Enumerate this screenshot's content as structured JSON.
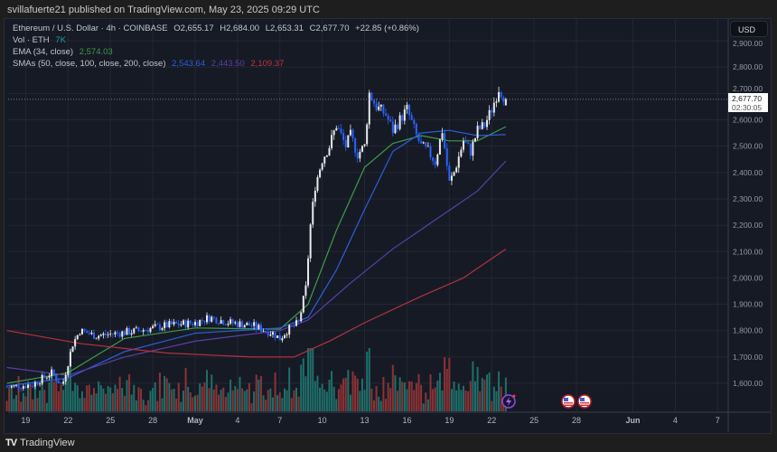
{
  "publisher_line": "svillafuerte21 published on TradingView.com, May 23, 2025 09:29 UTC",
  "legend": {
    "symbol": "Ethereum / U.S. Dollar · 4h · COINBASE",
    "open": "O2,655.17",
    "high": "H2,684.00",
    "low": "L2,653.31",
    "close": "C2,677.70",
    "change": "+22.85 (+0.86%)",
    "vol_label": "Vol · ETH",
    "vol_value": "7K",
    "ema_label": "EMA (34, close)",
    "ema_value": "2,574.03",
    "sma_label": "SMAs (50, close, 100, close, 200, close)",
    "sma50_value": "2,543.64",
    "sma100_value": "2,443.50",
    "sma200_value": "2,109.37"
  },
  "currency_button": "USD",
  "last_price": {
    "value": "2,677.70",
    "countdown": "02:30:05"
  },
  "branding": "TradingView",
  "colors": {
    "up_candle": "#e8eaed",
    "down_candle": "#2962ff",
    "vol_up": "#1f6f69",
    "vol_down": "#8c3336",
    "ema34": "#3f9a4a",
    "sma50": "#2b5fd9",
    "sma100": "#5b3fa6",
    "sma200": "#b5323d",
    "background": "#161a25"
  },
  "chart_data": {
    "type": "candlestick",
    "timeframe": "4h",
    "ylim": [
      1550,
      2950
    ],
    "y_ticks": [
      "2,900.00",
      "2,800.00",
      "2,700.00",
      "2,600.00",
      "2,500.00",
      "2,400.00",
      "2,300.00",
      "2,200.00",
      "2,100.00",
      "2,000.00",
      "1,900.00",
      "1,800.00",
      "1,700.00",
      "1,600.00"
    ],
    "x_ticks": [
      {
        "label": "19",
        "date": "2025-04-19"
      },
      {
        "label": "22",
        "date": "2025-04-22"
      },
      {
        "label": "25",
        "date": "2025-04-25"
      },
      {
        "label": "28",
        "date": "2025-04-28"
      },
      {
        "label": "May",
        "date": "2025-05-01"
      },
      {
        "label": "4",
        "date": "2025-05-04"
      },
      {
        "label": "7",
        "date": "2025-05-07"
      },
      {
        "label": "10",
        "date": "2025-05-10"
      },
      {
        "label": "13",
        "date": "2025-05-13"
      },
      {
        "label": "16",
        "date": "2025-05-16"
      },
      {
        "label": "19",
        "date": "2025-05-19"
      },
      {
        "label": "22",
        "date": "2025-05-22"
      },
      {
        "label": "25",
        "date": "2025-05-25"
      },
      {
        "label": "28",
        "date": "2025-05-28"
      },
      {
        "label": "Jun",
        "date": "2025-06-01"
      },
      {
        "label": "4",
        "date": "2025-06-04"
      },
      {
        "label": "7",
        "date": "2025-06-07"
      }
    ],
    "price_path": [
      [
        "2025-04-17T16:00",
        1585
      ],
      [
        "2025-04-19T12:00",
        1595
      ],
      [
        "2025-04-20T20:00",
        1640
      ],
      [
        "2025-04-21T14:00",
        1590
      ],
      [
        "2025-04-22T08:00",
        1750
      ],
      [
        "2025-04-22T20:00",
        1800
      ],
      [
        "2025-04-24T00:00",
        1780
      ],
      [
        "2025-04-25T12:00",
        1790
      ],
      [
        "2025-04-27T00:00",
        1800
      ],
      [
        "2025-04-29T00:00",
        1820
      ],
      [
        "2025-05-01T00:00",
        1830
      ],
      [
        "2025-05-02T00:00",
        1850
      ],
      [
        "2025-05-03T12:00",
        1830
      ],
      [
        "2025-05-05T00:00",
        1820
      ],
      [
        "2025-05-06T12:00",
        1790
      ],
      [
        "2025-05-07T00:00",
        1770
      ],
      [
        "2025-05-07T12:00",
        1800
      ],
      [
        "2025-05-08T08:00",
        1830
      ],
      [
        "2025-05-08T20:00",
        1960
      ],
      [
        "2025-05-09T04:00",
        2200
      ],
      [
        "2025-05-09T12:00",
        2350
      ],
      [
        "2025-05-10T00:00",
        2450
      ],
      [
        "2025-05-10T12:00",
        2500
      ],
      [
        "2025-05-11T00:00",
        2580
      ],
      [
        "2025-05-11T16:00",
        2500
      ],
      [
        "2025-05-12T00:00",
        2540
      ],
      [
        "2025-05-12T12:00",
        2470
      ],
      [
        "2025-05-13T00:00",
        2500
      ],
      [
        "2025-05-13T08:00",
        2700
      ],
      [
        "2025-05-13T20:00",
        2650
      ],
      [
        "2025-05-14T12:00",
        2620
      ],
      [
        "2025-05-15T00:00",
        2560
      ],
      [
        "2025-05-15T12:00",
        2600
      ],
      [
        "2025-05-16T00:00",
        2640
      ],
      [
        "2025-05-16T16:00",
        2540
      ],
      [
        "2025-05-17T00:00",
        2500
      ],
      [
        "2025-05-17T12:00",
        2480
      ],
      [
        "2025-05-18T00:00",
        2440
      ],
      [
        "2025-05-18T12:00",
        2560
      ],
      [
        "2025-05-19T00:00",
        2360
      ],
      [
        "2025-05-19T08:00",
        2400
      ],
      [
        "2025-05-20T00:00",
        2520
      ],
      [
        "2025-05-20T12:00",
        2480
      ],
      [
        "2025-05-21T00:00",
        2560
      ],
      [
        "2025-05-21T12:00",
        2580
      ],
      [
        "2025-05-22T00:00",
        2640
      ],
      [
        "2025-05-22T12:00",
        2720
      ],
      [
        "2025-05-23T00:00",
        2677.7
      ]
    ],
    "series": [
      {
        "name": "EMA (34, close)",
        "color_key": "ema34",
        "points": [
          [
            "2025-04-17T16:00",
            1600
          ],
          [
            "2025-04-22T00:00",
            1640
          ],
          [
            "2025-04-26T00:00",
            1770
          ],
          [
            "2025-05-01T00:00",
            1810
          ],
          [
            "2025-05-07T00:00",
            1805
          ],
          [
            "2025-05-09T00:00",
            1900
          ],
          [
            "2025-05-11T00:00",
            2180
          ],
          [
            "2025-05-13T00:00",
            2420
          ],
          [
            "2025-05-15T00:00",
            2510
          ],
          [
            "2025-05-17T00:00",
            2540
          ],
          [
            "2025-05-19T00:00",
            2520
          ],
          [
            "2025-05-21T00:00",
            2520
          ],
          [
            "2025-05-23T00:00",
            2574.03
          ]
        ]
      },
      {
        "name": "SMA 50",
        "color_key": "sma50",
        "points": [
          [
            "2025-04-17T16:00",
            1590
          ],
          [
            "2025-04-22T00:00",
            1620
          ],
          [
            "2025-04-26T00:00",
            1720
          ],
          [
            "2025-05-01T00:00",
            1790
          ],
          [
            "2025-05-07T00:00",
            1810
          ],
          [
            "2025-05-09T00:00",
            1850
          ],
          [
            "2025-05-11T00:00",
            2030
          ],
          [
            "2025-05-13T00:00",
            2260
          ],
          [
            "2025-05-15T00:00",
            2480
          ],
          [
            "2025-05-17T00:00",
            2550
          ],
          [
            "2025-05-19T00:00",
            2560
          ],
          [
            "2025-05-21T00:00",
            2540
          ],
          [
            "2025-05-23T00:00",
            2543.64
          ]
        ]
      },
      {
        "name": "SMA 100",
        "color_key": "sma100",
        "points": [
          [
            "2025-04-17T16:00",
            1660
          ],
          [
            "2025-04-22T00:00",
            1630
          ],
          [
            "2025-04-26T00:00",
            1700
          ],
          [
            "2025-05-01T00:00",
            1760
          ],
          [
            "2025-05-07T00:00",
            1800
          ],
          [
            "2025-05-09T00:00",
            1840
          ],
          [
            "2025-05-12T00:00",
            1980
          ],
          [
            "2025-05-15T00:00",
            2110
          ],
          [
            "2025-05-18T00:00",
            2220
          ],
          [
            "2025-05-21T00:00",
            2330
          ],
          [
            "2025-05-23T00:00",
            2443.5
          ]
        ]
      },
      {
        "name": "SMA 200",
        "color_key": "sma200",
        "points": [
          [
            "2025-04-17T16:00",
            1800
          ],
          [
            "2025-04-23T00:00",
            1750
          ],
          [
            "2025-04-29T00:00",
            1715
          ],
          [
            "2025-05-05T00:00",
            1700
          ],
          [
            "2025-05-08T00:00",
            1700
          ],
          [
            "2025-05-10T12:00",
            1760
          ],
          [
            "2025-05-13T00:00",
            1830
          ],
          [
            "2025-05-17T00:00",
            1930
          ],
          [
            "2025-05-20T00:00",
            2000
          ],
          [
            "2025-05-23T00:00",
            2109.37
          ]
        ]
      }
    ]
  }
}
